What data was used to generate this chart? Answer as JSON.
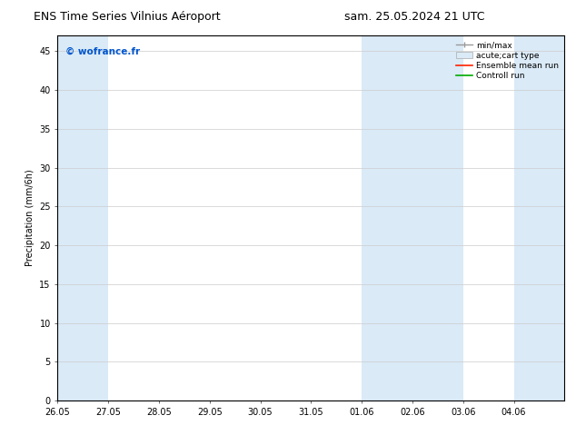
{
  "title_left": "ENS Time Series Vilnius Aéroport",
  "title_right": "sam. 25.05.2024 21 UTC",
  "ylabel": "Precipitation (mm/6h)",
  "watermark": "© wofrance.fr",
  "watermark_color": "#0055cc",
  "xlim_start": 0,
  "xlim_end": 40,
  "ylim": [
    0,
    47
  ],
  "yticks": [
    0,
    5,
    10,
    15,
    20,
    25,
    30,
    35,
    40,
    45
  ],
  "xtick_labels": [
    "26.05",
    "27.05",
    "28.05",
    "29.05",
    "30.05",
    "31.05",
    "01.06",
    "02.06",
    "03.06",
    "04.06"
  ],
  "xtick_positions": [
    0,
    4,
    8,
    12,
    16,
    20,
    24,
    28,
    32,
    36
  ],
  "shaded_bands": [
    {
      "x_start": 0,
      "x_end": 4,
      "color": "#daeaf7"
    },
    {
      "x_start": 24,
      "x_end": 28,
      "color": "#daeaf7"
    },
    {
      "x_start": 28,
      "x_end": 32,
      "color": "#daeaf7"
    },
    {
      "x_start": 36,
      "x_end": 40,
      "color": "#daeaf7"
    }
  ],
  "background_color": "#ffffff",
  "plot_bg_color": "#ffffff",
  "font_size": 7,
  "title_font_size": 9,
  "watermark_font_size": 7.5
}
